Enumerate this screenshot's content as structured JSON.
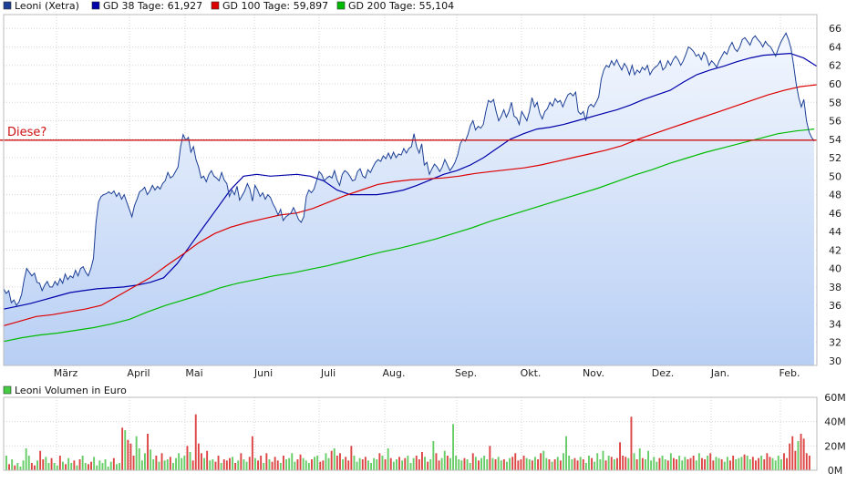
{
  "chart_data": [
    {
      "type": "line",
      "title": "Leoni (Xetra)",
      "legend": [
        {
          "name": "Leoni (Xetra)",
          "color": "#1c3f95"
        },
        {
          "name": "GD 38 Tage: 61,927",
          "color": "#0000aa"
        },
        {
          "name": "GD 100 Tage: 59,897",
          "color": "#dd0000"
        },
        {
          "name": "GD 200 Tage: 55,104",
          "color": "#00bb00"
        }
      ],
      "legend_position": "top-left",
      "months": [
        "März",
        "April",
        "Mai",
        "Juni",
        "Juli",
        "Aug.",
        "Sep.",
        "Okt.",
        "Nov.",
        "Dez.",
        "Jan.",
        "Feb."
      ],
      "ylim": [
        29.5,
        67.5
      ],
      "yticks": [
        "30",
        "32",
        "34",
        "36",
        "38",
        "40",
        "42",
        "44",
        "46",
        "48",
        "50",
        "52",
        "54",
        "56",
        "58",
        "60",
        "62",
        "64",
        "66"
      ],
      "annotation": {
        "label": "Diese?",
        "level": 53.9,
        "color": "#cc1111"
      },
      "series": [
        {
          "name": "Leoni (Xetra)",
          "color": "#1c3f95",
          "values": [
            37.8,
            37.3,
            37.6,
            36.3,
            36.6,
            36.0,
            36.4,
            37.2,
            38.8,
            40.0,
            39.6,
            39.2,
            39.5,
            38.5,
            38.4,
            37.6,
            38.2,
            38.6,
            38.0,
            38.0,
            38.6,
            38.2,
            38.9,
            38.4,
            39.4,
            38.8,
            39.2,
            39.0,
            39.8,
            39.2,
            40.0,
            40.2,
            39.6,
            39.2,
            40.0,
            41.1,
            45.0,
            47.2,
            47.8,
            48.0,
            48.1,
            48.3,
            48.1,
            48.4,
            47.8,
            48.2,
            47.5,
            48.0,
            47.2,
            46.4,
            45.6,
            46.8,
            47.5,
            48.3,
            48.5,
            48.8,
            48.0,
            48.4,
            49.0,
            48.5,
            48.9,
            48.6,
            49.2,
            49.5,
            50.4,
            49.8,
            50.0,
            50.5,
            51.0,
            53.2,
            54.5,
            53.9,
            54.2,
            52.6,
            53.2,
            51.8,
            51.0,
            49.8,
            50.0,
            49.4,
            50.2,
            50.6,
            50.0,
            49.8,
            49.5,
            50.4,
            49.6,
            49.2,
            47.8,
            48.5,
            48.0,
            48.9,
            47.4,
            47.9,
            48.4,
            49.2,
            48.6,
            47.3,
            49.0,
            48.5,
            47.8,
            48.2,
            47.5,
            48.0,
            47.7,
            47.0,
            46.5,
            45.8,
            46.4,
            45.2,
            45.6,
            45.8,
            46.0,
            46.6,
            46.0,
            45.3,
            45.0,
            45.6,
            47.8,
            48.5,
            48.2,
            48.6,
            49.5,
            50.5,
            50.2,
            49.5,
            49.8,
            50.0,
            49.8,
            50.6,
            49.6,
            49.0,
            50.2,
            50.6,
            50.4,
            50.0,
            49.5,
            49.6,
            50.5,
            50.8,
            50.0,
            49.8,
            50.7,
            50.4,
            51.0,
            51.5,
            51.8,
            51.6,
            52.2,
            51.9,
            52.5,
            51.9,
            52.6,
            52.0,
            52.4,
            52.3,
            53.0,
            52.5,
            53.0,
            53.2,
            54.6,
            53.2,
            52.5,
            53.5,
            51.2,
            51.5,
            50.2,
            50.8,
            51.3,
            51.0,
            50.5,
            51.0,
            51.8,
            51.2,
            50.6,
            51.0,
            51.5,
            52.3,
            53.5,
            54.0,
            53.8,
            54.5,
            55.5,
            56.0,
            55.0,
            55.4,
            55.2,
            55.6,
            57.0,
            58.2,
            58.0,
            58.3,
            57.0,
            56.0,
            56.5,
            57.2,
            56.4,
            57.0,
            58.0,
            56.5,
            56.3,
            55.6,
            57.0,
            56.5,
            56.0,
            57.0,
            58.5,
            57.5,
            58.0,
            56.8,
            56.2,
            57.0,
            57.3,
            58.0,
            57.6,
            58.4,
            58.0,
            58.2,
            57.5,
            58.2,
            58.8,
            59.0,
            58.7,
            59.1,
            57.0,
            56.7,
            57.0,
            56.0,
            57.5,
            57.8,
            57.5,
            58.0,
            58.6,
            60.5,
            61.5,
            62.0,
            61.8,
            62.5,
            62.0,
            62.6,
            62.0,
            61.5,
            62.2,
            61.8,
            61.0,
            62.0,
            61.0,
            61.5,
            61.2,
            61.8,
            61.5,
            62.0,
            61.0,
            61.5,
            61.8,
            62.0,
            62.5,
            61.5,
            61.8,
            62.5,
            62.0,
            62.6,
            63.0,
            62.6,
            62.0,
            62.5,
            63.2,
            64.0,
            63.8,
            63.5,
            63.0,
            63.2,
            62.6,
            63.4,
            63.0,
            62.0,
            62.5,
            62.2,
            61.8,
            62.5,
            63.0,
            63.5,
            63.2,
            64.0,
            64.5,
            63.8,
            63.5,
            64.0,
            64.8,
            65.0,
            64.6,
            64.2,
            64.9,
            65.2,
            64.8,
            64.5,
            64.0,
            64.6,
            64.2,
            64.0,
            63.5,
            63.0,
            63.8,
            64.5,
            65.0,
            65.5,
            64.8,
            63.8,
            62.0,
            60.0,
            58.5,
            57.5,
            58.3,
            56.0,
            54.8,
            54.2,
            53.8
          ]
        },
        {
          "name": "GD 38 Tage: 61,927",
          "color": "#0000aa",
          "values": [
            35.6,
            35.9,
            36.2,
            36.6,
            37.0,
            37.4,
            37.6,
            37.8,
            37.9,
            38.0,
            38.2,
            38.5,
            39.0,
            40.5,
            42.5,
            44.5,
            46.5,
            48.5,
            50.0,
            50.2,
            50.0,
            50.1,
            50.2,
            50.0,
            49.5,
            48.5,
            48.0,
            48.0,
            48.0,
            48.2,
            48.5,
            49.0,
            49.6,
            50.2,
            50.6,
            51.2,
            52.0,
            53.0,
            54.0,
            54.6,
            55.1,
            55.3,
            55.6,
            56.0,
            56.4,
            56.8,
            57.2,
            57.7,
            58.3,
            58.8,
            59.3,
            60.2,
            61.0,
            61.5,
            61.9,
            62.4,
            62.8,
            63.1,
            63.2,
            63.3,
            62.8,
            61.9
          ]
        },
        {
          "name": "GD 100 Tage: 59,897",
          "color": "#dd0000",
          "values": [
            33.8,
            34.3,
            34.8,
            35.0,
            35.3,
            35.6,
            36.0,
            37.0,
            38.0,
            39.0,
            40.3,
            41.5,
            42.8,
            43.8,
            44.5,
            45.0,
            45.4,
            45.8,
            46.0,
            46.5,
            47.2,
            47.9,
            48.5,
            49.1,
            49.4,
            49.6,
            49.7,
            49.8,
            50.0,
            50.3,
            50.5,
            50.7,
            50.9,
            51.2,
            51.6,
            52.0,
            52.4,
            52.8,
            53.3,
            54.0,
            54.6,
            55.2,
            55.8,
            56.4,
            57.0,
            57.6,
            58.2,
            58.8,
            59.3,
            59.7,
            59.9
          ]
        },
        {
          "name": "GD 200 Tage: 55,104",
          "color": "#00bb00",
          "values": [
            32.1,
            32.5,
            32.8,
            33.0,
            33.3,
            33.6,
            34.0,
            34.5,
            35.3,
            36.0,
            36.6,
            37.2,
            37.9,
            38.4,
            38.8,
            39.2,
            39.5,
            39.9,
            40.3,
            40.8,
            41.3,
            41.8,
            42.2,
            42.7,
            43.2,
            43.8,
            44.4,
            45.1,
            45.7,
            46.3,
            46.9,
            47.5,
            48.1,
            48.7,
            49.4,
            50.1,
            50.7,
            51.4,
            52.0,
            52.6,
            53.1,
            53.6,
            54.1,
            54.6,
            54.9,
            55.1
          ]
        }
      ]
    },
    {
      "type": "bar",
      "title": "Leoni Volumen in Euro",
      "legend": [
        {
          "name": "Leoni Volumen in Euro",
          "color": "#44cc44"
        }
      ],
      "ylim": [
        0,
        60
      ],
      "yticks": [
        "0M",
        "20M",
        "40M",
        "60M"
      ],
      "up_color": "#66cc66",
      "down_color": "#dd4444",
      "values": [
        12,
        5,
        9,
        4,
        6,
        3,
        8,
        18,
        12,
        6,
        4,
        8,
        16,
        9,
        11,
        6,
        10,
        6,
        4,
        12,
        7,
        5,
        10,
        6,
        8,
        4,
        9,
        12,
        6,
        5,
        7,
        11,
        4,
        8,
        6,
        9,
        3,
        7,
        10,
        5,
        6,
        35,
        33,
        25,
        22,
        12,
        28,
        18,
        8,
        14,
        30,
        17,
        9,
        12,
        7,
        14,
        8,
        9,
        11,
        6,
        10,
        14,
        10,
        12,
        20,
        15,
        8,
        46,
        22,
        14,
        10,
        16,
        8,
        9,
        7,
        12,
        6,
        9,
        8,
        10,
        11,
        6,
        8,
        14,
        9,
        7,
        11,
        28,
        10,
        8,
        12,
        6,
        14,
        9,
        7,
        11,
        8,
        6,
        12,
        9,
        10,
        14,
        7,
        9,
        13,
        10,
        8,
        6,
        9,
        11,
        12,
        7,
        8,
        14,
        10,
        16,
        18,
        12,
        14,
        9,
        11,
        8,
        20,
        12,
        7,
        10,
        9,
        11,
        8,
        6,
        10,
        9,
        14,
        12,
        9,
        18,
        10,
        7,
        9,
        11,
        8,
        10,
        12,
        6,
        10,
        12,
        9,
        15,
        11,
        7,
        9,
        24,
        14,
        8,
        10,
        16,
        12,
        10,
        38,
        12,
        9,
        8,
        10,
        9,
        6,
        14,
        11,
        8,
        10,
        12,
        9,
        20,
        10,
        9,
        11,
        8,
        9,
        7,
        10,
        11,
        14,
        8,
        9,
        12,
        10,
        9,
        8,
        11,
        9,
        14,
        16,
        10,
        9,
        7,
        9,
        11,
        8,
        14,
        28,
        12,
        9,
        10,
        8,
        11,
        9,
        6,
        12,
        10,
        7,
        14,
        9,
        16,
        8,
        12,
        11,
        9,
        10,
        23,
        12,
        11,
        10,
        44,
        14,
        9,
        18,
        10,
        9,
        16,
        8,
        11,
        7,
        10,
        12,
        9,
        8,
        14,
        10,
        9,
        12,
        8,
        11,
        9,
        10,
        12,
        8,
        14,
        10,
        9,
        12,
        14,
        8,
        11,
        10,
        9,
        7,
        11,
        8,
        12,
        9,
        10,
        11,
        13,
        12,
        9,
        11,
        8,
        10,
        12,
        9,
        14,
        11,
        10,
        8,
        12,
        9,
        14,
        10,
        22,
        28,
        16,
        24,
        30,
        26,
        14,
        12
      ]
    }
  ]
}
